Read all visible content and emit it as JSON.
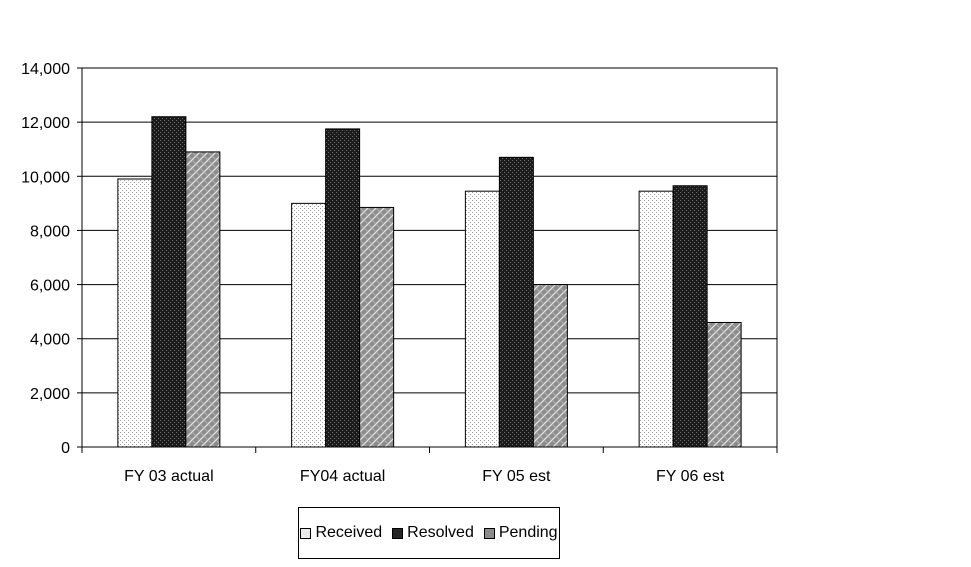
{
  "chart_data": {
    "type": "bar",
    "title": "",
    "xlabel": "",
    "ylabel": "",
    "categories": [
      "FY 03 actual",
      "FY04 actual",
      "FY 05 est",
      "FY 06 est"
    ],
    "series": [
      {
        "name": "Received",
        "values": [
          9900,
          9000,
          9450,
          9450
        ],
        "pattern": "light-dots"
      },
      {
        "name": "Resolved",
        "values": [
          12200,
          11750,
          10700,
          9650
        ],
        "pattern": "dark-dots"
      },
      {
        "name": "Pending",
        "values": [
          10900,
          8850,
          6000,
          4600
        ],
        "pattern": "gray-brick"
      }
    ],
    "ylim": [
      0,
      14000
    ],
    "yticks": [
      "0",
      "2,000",
      "4,000",
      "6,000",
      "8,000",
      "10,000",
      "12,000",
      "14,000"
    ],
    "grid": true,
    "legend_position": "bottom"
  }
}
